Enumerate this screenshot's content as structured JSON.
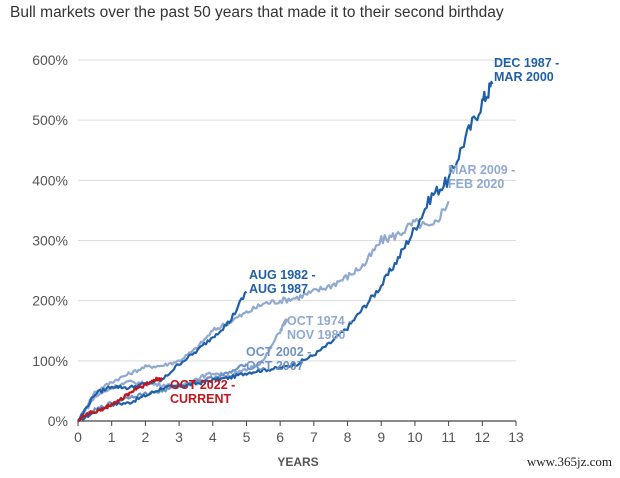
{
  "title": "Bull markets over the past 50 years that made it to their second birthday",
  "watermark": "www.365jz.com",
  "chart_data": {
    "type": "line",
    "title": "Bull markets over the past 50 years that made it to their second birthday",
    "xlabel": "YEARS",
    "ylabel": "",
    "xlim": [
      0,
      13
    ],
    "ylim": [
      0,
      600
    ],
    "x_ticks": [
      0,
      1,
      2,
      3,
      4,
      5,
      6,
      7,
      8,
      9,
      10,
      11,
      12,
      13
    ],
    "y_ticks": [
      0,
      100,
      200,
      300,
      400,
      500,
      600
    ],
    "y_tick_labels": [
      "0%",
      "100%",
      "200%",
      "300%",
      "400%",
      "500%",
      "600%"
    ],
    "grid": "horizontal",
    "series": [
      {
        "name": "DEC 1987 - MAR 2000",
        "color": "#1f5fa8",
        "x": [
          0,
          0.5,
          1,
          1.5,
          2,
          2.5,
          3,
          3.5,
          4,
          4.5,
          5,
          5.5,
          6,
          6.5,
          7,
          7.5,
          8,
          8.5,
          9,
          9.5,
          10,
          10.5,
          11,
          11.5,
          12,
          12.3
        ],
        "y": [
          0,
          15,
          28,
          30,
          42,
          55,
          58,
          62,
          68,
          72,
          80,
          85,
          88,
          95,
          110,
          130,
          155,
          190,
          225,
          270,
          320,
          375,
          400,
          470,
          530,
          560
        ]
      },
      {
        "name": "MAR 2009 - FEB 2020",
        "color": "#8fa9cf",
        "x": [
          0,
          0.5,
          1,
          1.5,
          2,
          2.5,
          3,
          3.5,
          4,
          4.5,
          5,
          5.5,
          6,
          6.5,
          7,
          7.5,
          8,
          8.5,
          9,
          9.5,
          10,
          10.5,
          11
        ],
        "y": [
          0,
          48,
          65,
          78,
          90,
          92,
          100,
          120,
          150,
          165,
          180,
          195,
          200,
          205,
          215,
          225,
          240,
          260,
          300,
          310,
          330,
          320,
          365
        ]
      },
      {
        "name": "AUG 1982 - AUG 1987",
        "color": "#1f5fa8",
        "x": [
          0,
          0.5,
          1,
          1.5,
          2,
          2.5,
          3,
          3.5,
          4,
          4.5,
          5
        ],
        "y": [
          0,
          45,
          58,
          55,
          62,
          68,
          95,
          115,
          140,
          165,
          215
        ]
      },
      {
        "name": "OCT 1974 - NOV 1980",
        "color": "#8fa9cf",
        "x": [
          0,
          0.5,
          1,
          1.5,
          2,
          2.5,
          3,
          3.5,
          4,
          4.5,
          5,
          5.5,
          6,
          6.2
        ],
        "y": [
          0,
          40,
          55,
          65,
          62,
          60,
          58,
          70,
          80,
          75,
          85,
          100,
          150,
          170
        ]
      },
      {
        "name": "OCT 2002 - OCT 2007",
        "color": "#6f93c4",
        "x": [
          0,
          0.5,
          1,
          1.5,
          2,
          2.5,
          3,
          3.5,
          4,
          4.5,
          5
        ],
        "y": [
          0,
          18,
          30,
          40,
          45,
          50,
          58,
          65,
          72,
          80,
          95
        ]
      },
      {
        "name": "OCT 2022 - CURRENT",
        "color": "#c0161d",
        "x": [
          0,
          0.25,
          0.5,
          0.75,
          1,
          1.25,
          1.5,
          1.75,
          2,
          2.25,
          2.5
        ],
        "y": [
          0,
          12,
          15,
          20,
          28,
          35,
          45,
          55,
          60,
          68,
          72
        ]
      }
    ]
  }
}
